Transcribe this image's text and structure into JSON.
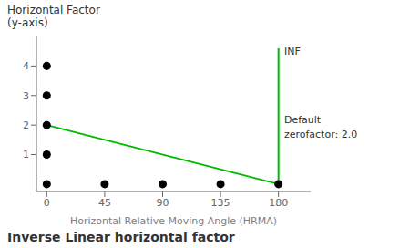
{
  "chart_data": {
    "type": "line",
    "title": "Inverse Linear horizontal factor",
    "xlabel": "Horizontal Relative Moving Angle (HRMA)",
    "ylabel": [
      "Horizontal Factor",
      "(y-axis)"
    ],
    "xlim": [
      -8,
      205
    ],
    "xticks": [
      0,
      45,
      90,
      135,
      180
    ],
    "ylim": [
      -0.25,
      5.0
    ],
    "yticks": [
      1,
      2,
      3,
      4
    ],
    "grid": false,
    "series": [
      {
        "type": "line",
        "color": "#00bb00",
        "x": [
          0,
          180
        ],
        "values": [
          2,
          0
        ]
      },
      {
        "type": "line",
        "color": "#00bb00",
        "x": [
          180,
          180
        ],
        "values": [
          0,
          4.6
        ]
      },
      {
        "type": "scatter",
        "color": "#000000",
        "x": [
          0,
          0,
          0,
          0,
          0,
          45,
          90,
          135,
          180
        ],
        "values": [
          0,
          1,
          2,
          3,
          4,
          0,
          0,
          0,
          0
        ]
      }
    ],
    "annotations": [
      {
        "text": "INF",
        "x": 183,
        "y": 4.5
      },
      {
        "text": "Default",
        "x": 183,
        "y": 2.2
      },
      {
        "text": " zerofactor: 2.0",
        "x": 183,
        "y": 1.7
      }
    ]
  }
}
